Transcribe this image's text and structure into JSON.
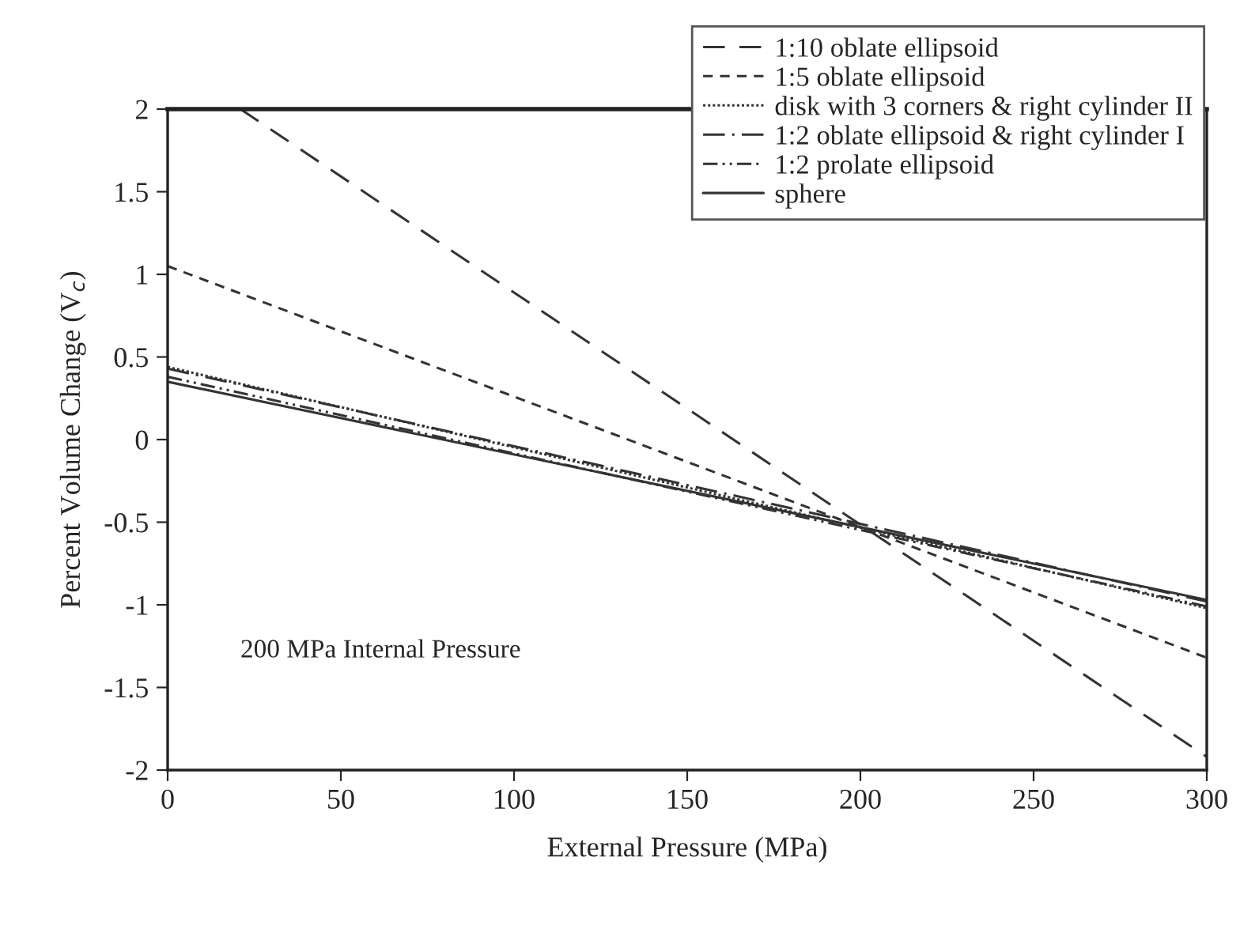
{
  "chart_data": {
    "type": "line",
    "xlabel": "External Pressure (MPa)",
    "ylabel": "Percent Volume Change (V$_{c}$)",
    "xlim": [
      0,
      300
    ],
    "xticks": [
      0,
      50,
      100,
      150,
      200,
      250,
      300
    ],
    "ylim": [
      -2,
      2
    ],
    "yticks": [
      -2,
      -1.5,
      -1,
      -0.5,
      0,
      0.5,
      1,
      1.5,
      2
    ],
    "grid": false,
    "legend": "top right",
    "marker": "none",
    "annotations": [
      "200 MPa Internal Pressure"
    ],
    "series": [
      {
        "name": "1:10 oblate ellipsoid",
        "color": "#333333",
        "line_style": "long dashed",
        "x": [
          21,
          300
        ],
        "values": [
          2,
          -1.92
        ]
      },
      {
        "name": "1:5 oblate ellipsoid",
        "color": "#333333",
        "line_style": "dashed",
        "x": [
          0,
          300
        ],
        "values": [
          1.05,
          -1.32
        ]
      },
      {
        "name": "disk with 3 corners & right cylinder II",
        "color": "#333333",
        "line_style": "dotted",
        "x": [
          0,
          300
        ],
        "values": [
          0.44,
          -1.02
        ]
      },
      {
        "name": "1:2 oblate ellipsoid & right cylinder I",
        "color": "#333333",
        "line_style": "dashdot",
        "x": [
          0,
          300
        ],
        "values": [
          0.43,
          -0.98
        ]
      },
      {
        "name": "1:2 prolate ellipsoid",
        "color": "#333333",
        "line_style": "dashdotdot",
        "x": [
          0,
          300
        ],
        "values": [
          0.38,
          -1.01
        ]
      },
      {
        "name": "sphere",
        "color": "#333333",
        "line_style": "solid",
        "x": [
          0,
          300
        ],
        "values": [
          0.35,
          -0.97
        ]
      }
    ]
  }
}
